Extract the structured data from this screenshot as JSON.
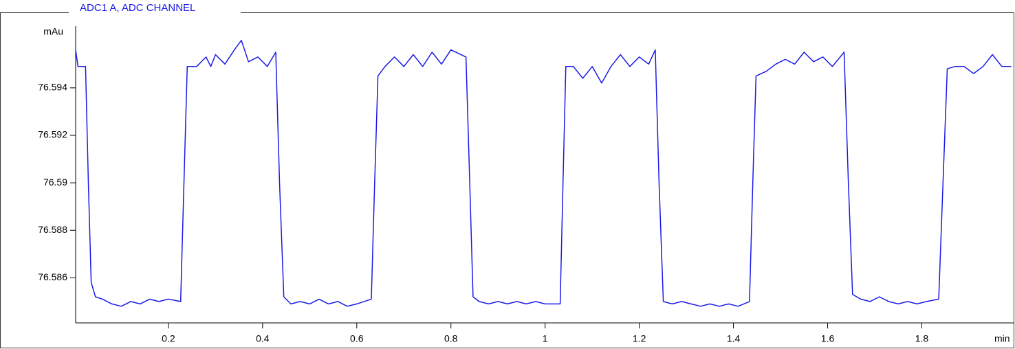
{
  "chart_data": {
    "type": "line",
    "title": "ADC1 A, ADC CHANNEL",
    "y_label": "mAu",
    "x_label": "min",
    "xlim": [
      0.003,
      1.995
    ],
    "ylim": [
      76.5841,
      76.5966
    ],
    "xticks": [
      0.2,
      0.4,
      0.6,
      0.8,
      1,
      1.2,
      1.4,
      1.6,
      1.8
    ],
    "yticks": [
      76.586,
      76.588,
      76.59,
      76.592,
      76.594
    ],
    "series": [
      {
        "color": "#1a1ae6",
        "x": [
          0.003,
          0.008,
          0.024,
          0.03,
          0.036,
          0.045,
          0.06,
          0.08,
          0.1,
          0.12,
          0.14,
          0.16,
          0.18,
          0.2,
          0.226,
          0.233,
          0.24,
          0.26,
          0.28,
          0.29,
          0.3,
          0.32,
          0.34,
          0.355,
          0.37,
          0.39,
          0.41,
          0.428,
          0.436,
          0.445,
          0.46,
          0.48,
          0.5,
          0.52,
          0.54,
          0.56,
          0.58,
          0.6,
          0.631,
          0.638,
          0.645,
          0.66,
          0.68,
          0.7,
          0.72,
          0.74,
          0.76,
          0.78,
          0.8,
          0.832,
          0.84,
          0.847,
          0.86,
          0.88,
          0.9,
          0.92,
          0.94,
          0.96,
          0.98,
          1.0,
          1.032,
          1.038,
          1.044,
          1.06,
          1.08,
          1.1,
          1.12,
          1.14,
          1.16,
          1.18,
          1.2,
          1.22,
          1.234,
          1.242,
          1.251,
          1.27,
          1.29,
          1.31,
          1.33,
          1.35,
          1.37,
          1.39,
          1.41,
          1.434,
          1.441,
          1.448,
          1.47,
          1.49,
          1.51,
          1.53,
          1.55,
          1.57,
          1.59,
          1.61,
          1.635,
          1.644,
          1.653,
          1.67,
          1.69,
          1.71,
          1.73,
          1.75,
          1.77,
          1.79,
          1.81,
          1.836,
          1.845,
          1.854,
          1.87,
          1.89,
          1.91,
          1.93,
          1.95,
          1.97,
          1.99
        ],
        "values": [
          76.5956,
          76.5949,
          76.5949,
          76.59,
          76.5858,
          76.5852,
          76.5851,
          76.5849,
          76.5848,
          76.585,
          76.5849,
          76.5851,
          76.585,
          76.5851,
          76.585,
          76.59,
          76.5949,
          76.5949,
          76.5953,
          76.5949,
          76.5954,
          76.595,
          76.5956,
          76.596,
          76.5951,
          76.5953,
          76.5949,
          76.5955,
          76.59,
          76.5852,
          76.5849,
          76.585,
          76.5849,
          76.5851,
          76.5849,
          76.585,
          76.5848,
          76.5849,
          76.5851,
          76.59,
          76.5945,
          76.5949,
          76.5953,
          76.5949,
          76.5954,
          76.5949,
          76.5955,
          76.595,
          76.5956,
          76.5953,
          76.59,
          76.5852,
          76.585,
          76.5849,
          76.585,
          76.5849,
          76.585,
          76.5849,
          76.585,
          76.5849,
          76.5849,
          76.59,
          76.5949,
          76.5949,
          76.5944,
          76.5949,
          76.5942,
          76.5949,
          76.5954,
          76.5949,
          76.5953,
          76.595,
          76.5956,
          76.59,
          76.585,
          76.5849,
          76.585,
          76.5849,
          76.5848,
          76.5849,
          76.5848,
          76.5849,
          76.5848,
          76.585,
          76.59,
          76.5945,
          76.5947,
          76.595,
          76.5952,
          76.595,
          76.5955,
          76.5951,
          76.5953,
          76.5949,
          76.5955,
          76.59,
          76.5853,
          76.5851,
          76.585,
          76.5852,
          76.585,
          76.5849,
          76.585,
          76.5849,
          76.585,
          76.5851,
          76.59,
          76.5948,
          76.5949,
          76.5949,
          76.5946,
          76.5949,
          76.5954,
          76.5949,
          76.5949
        ]
      }
    ]
  }
}
